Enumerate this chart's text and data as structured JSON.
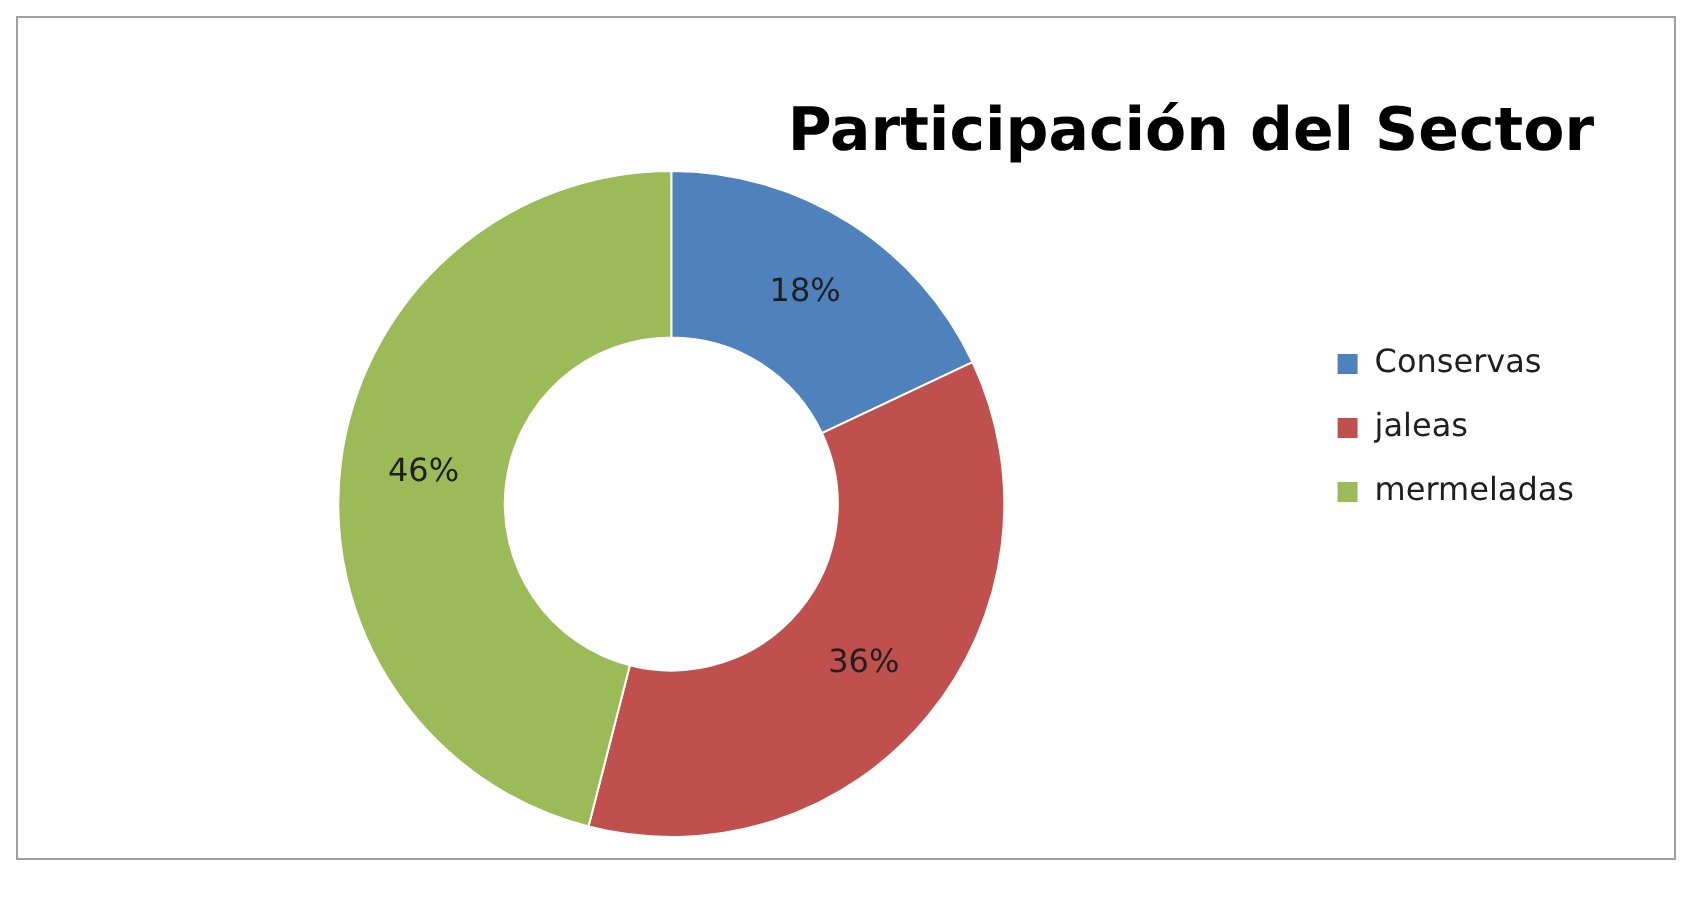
{
  "chart_data": {
    "type": "donut",
    "title": "Participación del Sector",
    "categories": [
      "Conservas",
      "jaleas",
      "mermeladas"
    ],
    "values": [
      18,
      36,
      46
    ],
    "colors": [
      "#4f81bd",
      "#c0504d",
      "#9bbb59"
    ],
    "value_labels": [
      "18%",
      "36%",
      "46%"
    ],
    "legend": "right"
  }
}
